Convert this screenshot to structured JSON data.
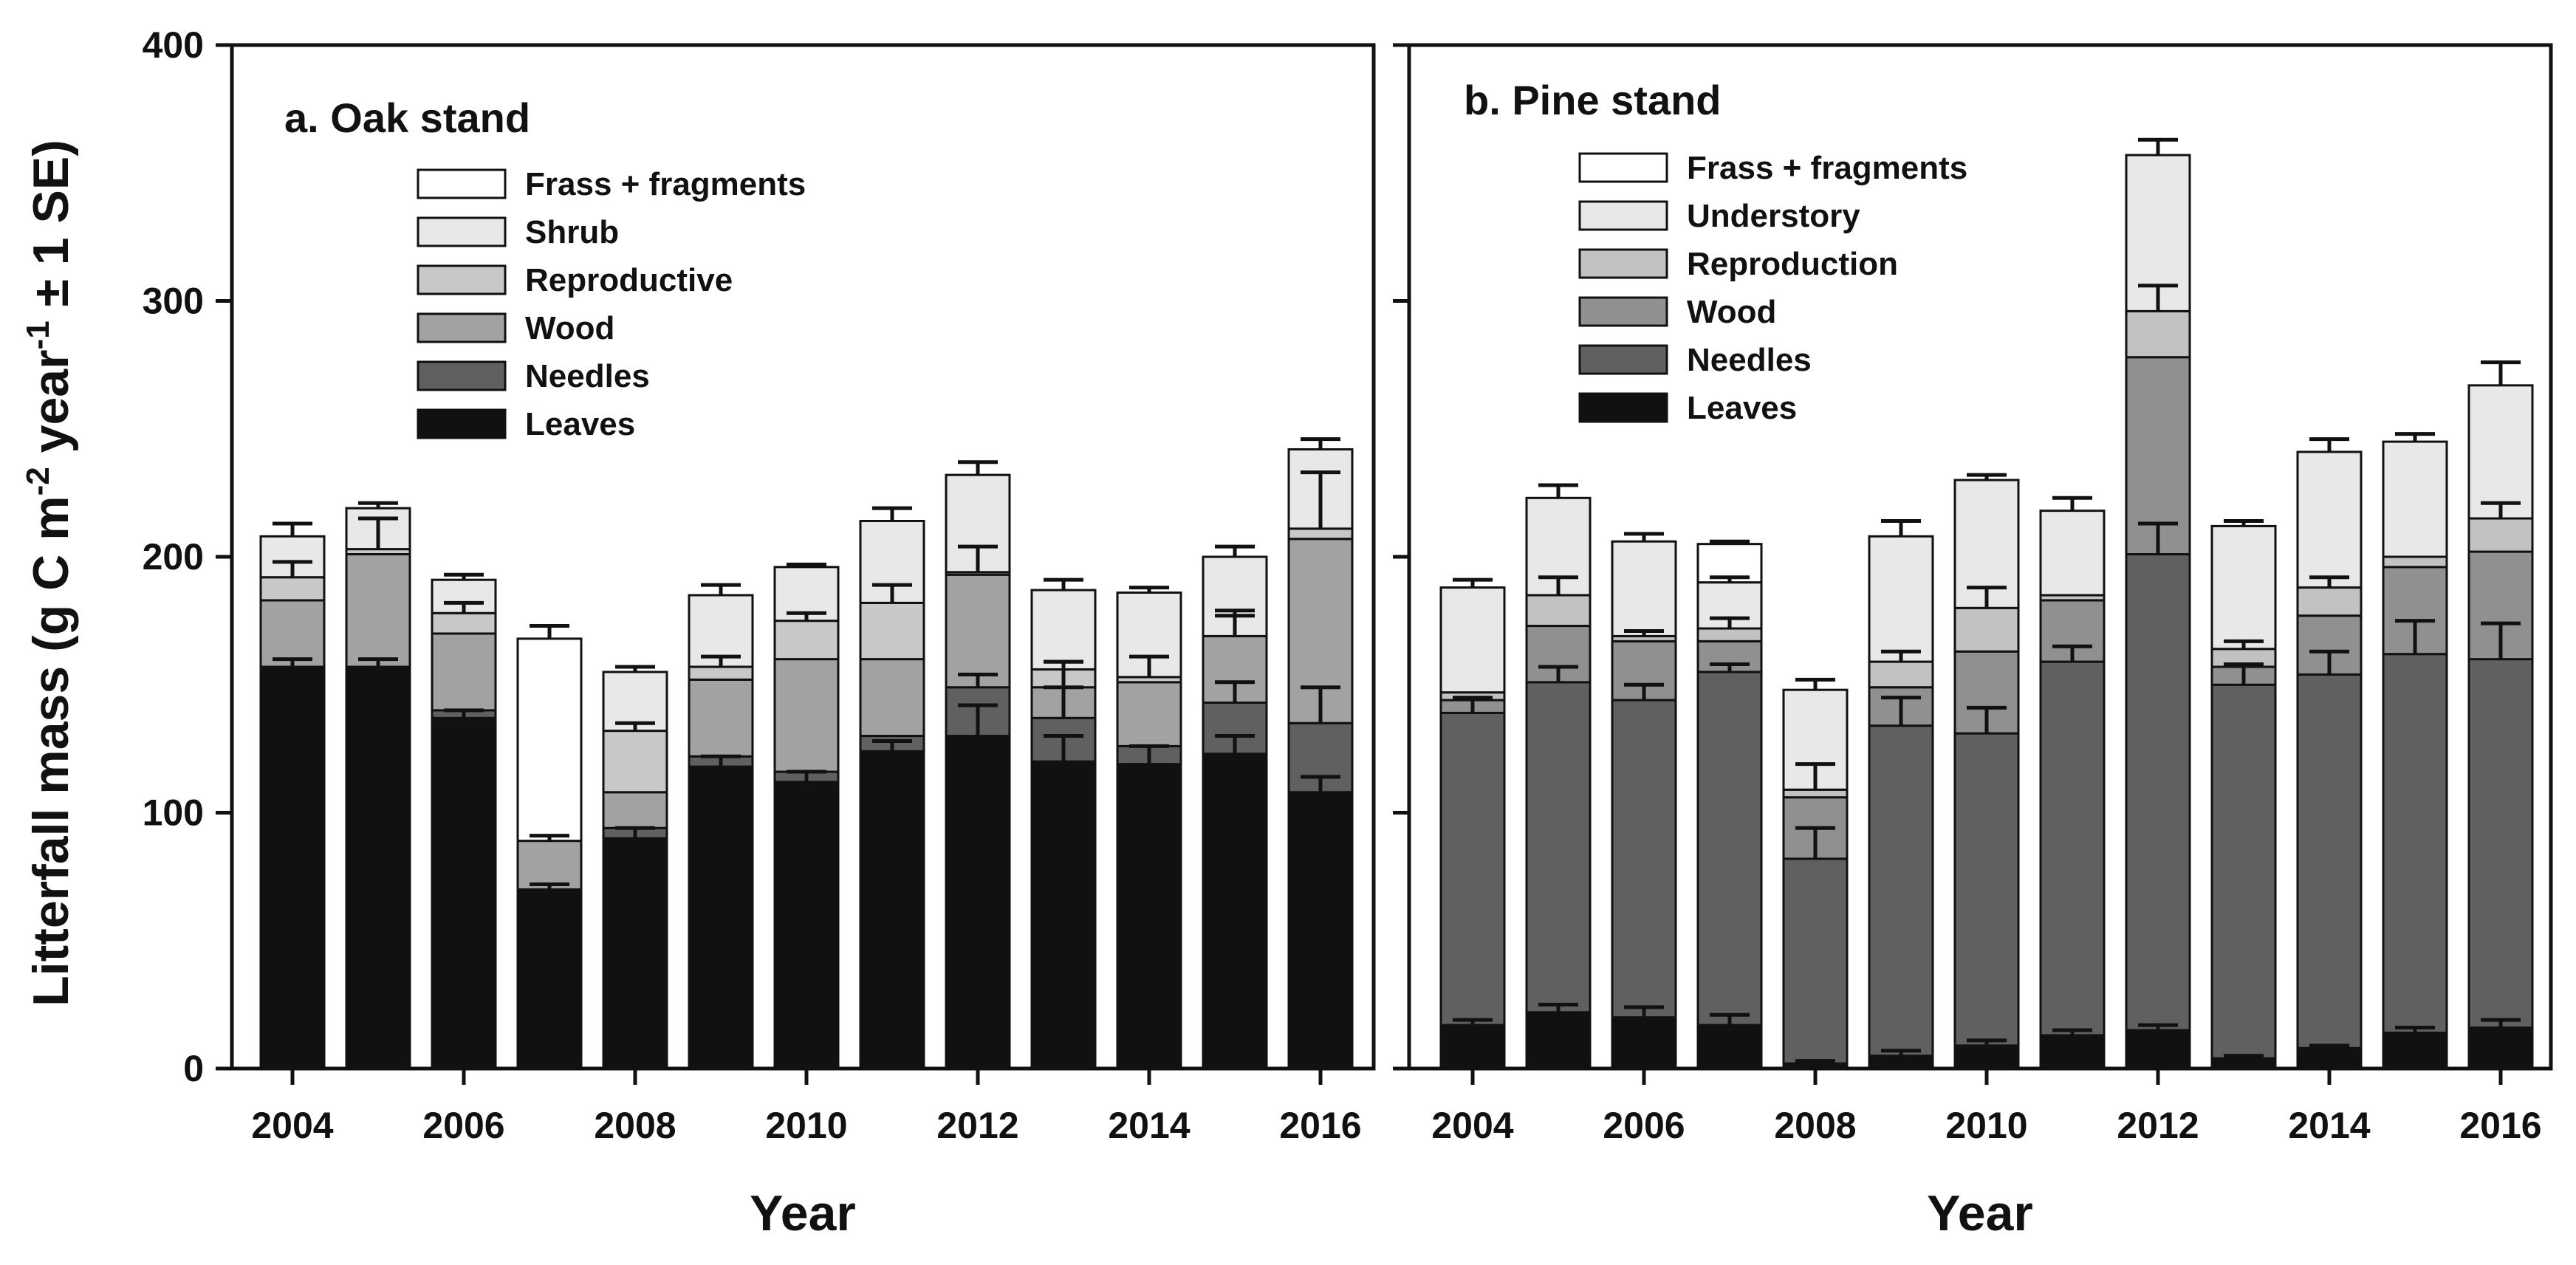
{
  "chart_data": {
    "type": "stacked-bar",
    "ylabel": "Litterfall mass (g C m-2 year-1 ± 1 SE)",
    "ylabel_parts": [
      "Litterfall mass (g C m",
      "-2",
      " year",
      "-1",
      " ± 1 SE)"
    ],
    "xlabel": "Year",
    "ylim": [
      0,
      400
    ],
    "yticks": [
      "0",
      "100",
      "200",
      "300",
      "400"
    ],
    "xtick_labels": [
      "2004",
      "2006",
      "2008",
      "2010",
      "2012",
      "2014",
      "2016"
    ],
    "panels": [
      {
        "title": "a. Oak stand",
        "categories": [
          "2004",
          "2005",
          "2006",
          "2007",
          "2008",
          "2009",
          "2010",
          "2011",
          "2012",
          "2013",
          "2014",
          "2015",
          "2016"
        ],
        "series": [
          {
            "name": "Leaves",
            "color": "#111111",
            "values": [
              157,
              157,
              137,
              70,
              90,
              118,
              112,
              124,
              130,
              120,
              119,
              123,
              108
            ],
            "errors": [
              3,
              3,
              3,
              2,
              4,
              4,
              4,
              4,
              12,
              10,
              7,
              7,
              6
            ]
          },
          {
            "name": "Needles",
            "color": "#606060",
            "values": [
              0,
              0,
              3,
              0,
              4,
              4,
              4,
              6,
              19,
              17,
              7,
              20,
              27
            ],
            "errors": [
              0,
              0,
              0,
              0,
              0,
              0,
              0,
              0,
              5,
              12,
              0,
              8,
              14
            ]
          },
          {
            "name": "Wood",
            "color": "#a2a2a2",
            "values": [
              26,
              44,
              30,
              19,
              14,
              30,
              44,
              30,
              44,
              12,
              25,
              26,
              72
            ],
            "errors": [
              0,
              0,
              0,
              2,
              0,
              0,
              0,
              0,
              0,
              10,
              0,
              8,
              0
            ]
          },
          {
            "name": "Reproductive",
            "color": "#c8c8c8",
            "values": [
              9,
              2,
              8,
              0,
              24,
              5,
              15,
              22,
              1,
              7,
              2,
              0,
              4
            ],
            "errors": [
              6,
              12,
              4,
              0,
              3,
              4,
              3,
              7,
              10,
              3,
              8,
              10,
              22
            ]
          },
          {
            "name": "Shrub",
            "color": "#e8e8e8",
            "values": [
              16,
              16,
              13,
              0,
              23,
              28,
              21,
              32,
              38,
              31,
              33,
              31,
              31
            ],
            "errors": [
              5,
              2,
              2,
              0,
              2,
              4,
              1,
              5,
              5,
              4,
              2,
              4,
              4
            ]
          },
          {
            "name": "Frass + fragments",
            "color": "#ffffff",
            "values": [
              0,
              0,
              0,
              79,
              0,
              0,
              0,
              0,
              0,
              0,
              0,
              0,
              0
            ],
            "errors": [
              0,
              0,
              0,
              5,
              0,
              0,
              0,
              0,
              0,
              0,
              0,
              0,
              0
            ]
          }
        ]
      },
      {
        "title": "b. Pine stand",
        "categories": [
          "2004",
          "2005",
          "2006",
          "2007",
          "2008",
          "2009",
          "2010",
          "2011",
          "2012",
          "2013",
          "2014",
          "2015",
          "2016"
        ],
        "series": [
          {
            "name": "Leaves",
            "color": "#111111",
            "values": [
              17,
              22,
              20,
              17,
              2,
              5,
              9,
              13,
              15,
              4,
              8,
              14,
              16
            ],
            "errors": [
              2,
              3,
              4,
              4,
              1,
              2,
              2,
              2,
              2,
              1,
              1,
              2,
              3
            ]
          },
          {
            "name": "Needles",
            "color": "#606060",
            "values": [
              122,
              129,
              124,
              138,
              80,
              129,
              122,
              146,
              186,
              146,
              146,
              148,
              144
            ],
            "errors": [
              6,
              6,
              6,
              3,
              12,
              11,
              10,
              6,
              12,
              8,
              9,
              13,
              14
            ]
          },
          {
            "name": "Wood",
            "color": "#909090",
            "values": [
              5,
              22,
              23,
              12,
              24,
              15,
              32,
              24,
              77,
              7,
              23,
              34,
              42
            ],
            "errors": [
              0,
              0,
              0,
              0,
              0,
              0,
              0,
              0,
              0,
              0,
              0,
              0,
              0
            ]
          },
          {
            "name": "Reproduction",
            "color": "#c2c2c2",
            "values": [
              3,
              12,
              2,
              5,
              3,
              10,
              17,
              2,
              18,
              7,
              11,
              4,
              13
            ],
            "errors": [
              0,
              7,
              2,
              4,
              10,
              4,
              8,
              0,
              10,
              3,
              4,
              0,
              6
            ]
          },
          {
            "name": "Understory",
            "color": "#e8e8e8",
            "values": [
              41,
              38,
              37,
              18,
              39,
              49,
              50,
              33,
              61,
              48,
              53,
              45,
              52
            ],
            "errors": [
              3,
              5,
              3,
              2,
              4,
              6,
              2,
              5,
              6,
              2,
              5,
              3,
              9
            ]
          },
          {
            "name": "Frass + fragments",
            "color": "#ffffff",
            "values": [
              0,
              0,
              0,
              15,
              0,
              0,
              0,
              0,
              0,
              0,
              0,
              0,
              0
            ],
            "errors": [
              0,
              0,
              0,
              1,
              0,
              0,
              0,
              0,
              0,
              0,
              0,
              0,
              0
            ]
          }
        ]
      }
    ]
  }
}
